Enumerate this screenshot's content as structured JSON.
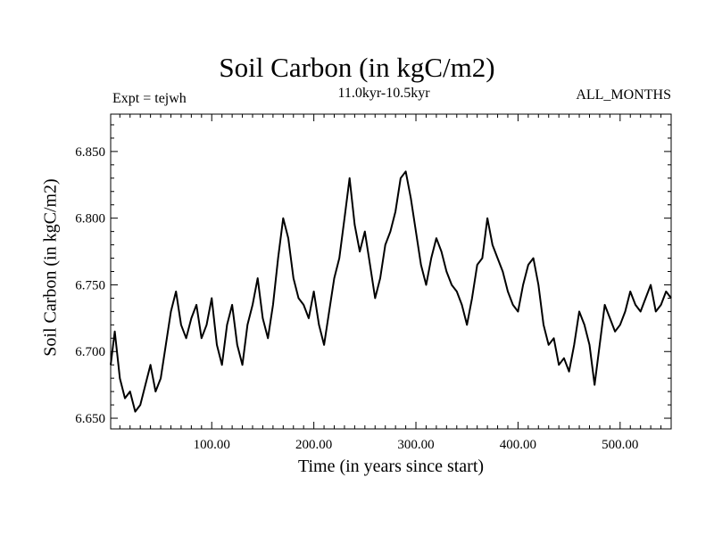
{
  "chart_data": {
    "type": "line",
    "title": "Soil Carbon (in kgC/m2)",
    "subtitle": "11.0kyr-10.5kyr",
    "experiment_label": "Expt = tejwh",
    "months_label": "ALL_MONTHS",
    "xlabel": "Time (in years since start)",
    "ylabel": "Soil Carbon (in kgC/m2)",
    "xlim": [
      1,
      550
    ],
    "ylim": [
      6.642,
      6.878
    ],
    "x_ticks": [
      100,
      200,
      300,
      400,
      500
    ],
    "x_tick_labels": [
      "100.00",
      "200.00",
      "300.00",
      "400.00",
      "500.00"
    ],
    "y_ticks": [
      6.65,
      6.7,
      6.75,
      6.8,
      6.85
    ],
    "y_tick_labels": [
      "6.650",
      "6.700",
      "6.750",
      "6.800",
      "6.850"
    ],
    "series": [
      {
        "name": "Soil Carbon",
        "color": "#000000",
        "x": [
          1,
          5,
          10,
          15,
          20,
          25,
          30,
          35,
          40,
          45,
          50,
          55,
          60,
          65,
          70,
          75,
          80,
          85,
          90,
          95,
          100,
          105,
          110,
          115,
          120,
          125,
          130,
          135,
          140,
          145,
          150,
          155,
          160,
          165,
          170,
          175,
          180,
          185,
          190,
          195,
          200,
          205,
          210,
          215,
          220,
          225,
          230,
          235,
          240,
          245,
          250,
          255,
          260,
          265,
          270,
          275,
          280,
          285,
          290,
          295,
          300,
          305,
          310,
          315,
          320,
          325,
          330,
          335,
          340,
          345,
          350,
          355,
          360,
          365,
          370,
          375,
          380,
          385,
          390,
          395,
          400,
          405,
          410,
          415,
          420,
          425,
          430,
          435,
          440,
          445,
          450,
          455,
          460,
          465,
          470,
          475,
          480,
          485,
          490,
          495,
          500,
          505,
          510,
          515,
          520,
          525,
          530,
          535,
          540,
          545,
          550
        ],
        "y": [
          6.69,
          6.715,
          6.68,
          6.665,
          6.67,
          6.655,
          6.66,
          6.675,
          6.69,
          6.67,
          6.68,
          6.705,
          6.73,
          6.745,
          6.72,
          6.71,
          6.725,
          6.735,
          6.71,
          6.72,
          6.74,
          6.705,
          6.69,
          6.72,
          6.735,
          6.705,
          6.69,
          6.72,
          6.735,
          6.755,
          6.725,
          6.71,
          6.735,
          6.77,
          6.8,
          6.785,
          6.755,
          6.74,
          6.735,
          6.725,
          6.745,
          6.72,
          6.705,
          6.73,
          6.755,
          6.77,
          6.8,
          6.83,
          6.795,
          6.775,
          6.79,
          6.765,
          6.74,
          6.755,
          6.78,
          6.79,
          6.805,
          6.83,
          6.835,
          6.815,
          6.79,
          6.765,
          6.75,
          6.77,
          6.785,
          6.775,
          6.76,
          6.75,
          6.745,
          6.735,
          6.72,
          6.74,
          6.765,
          6.77,
          6.8,
          6.78,
          6.77,
          6.76,
          6.745,
          6.735,
          6.73,
          6.75,
          6.765,
          6.77,
          6.75,
          6.72,
          6.705,
          6.71,
          6.69,
          6.695,
          6.685,
          6.705,
          6.73,
          6.72,
          6.705,
          6.675,
          6.705,
          6.735,
          6.725,
          6.715,
          6.72,
          6.73,
          6.745,
          6.735,
          6.73,
          6.74,
          6.75,
          6.73,
          6.735,
          6.745,
          6.74
        ]
      }
    ]
  }
}
